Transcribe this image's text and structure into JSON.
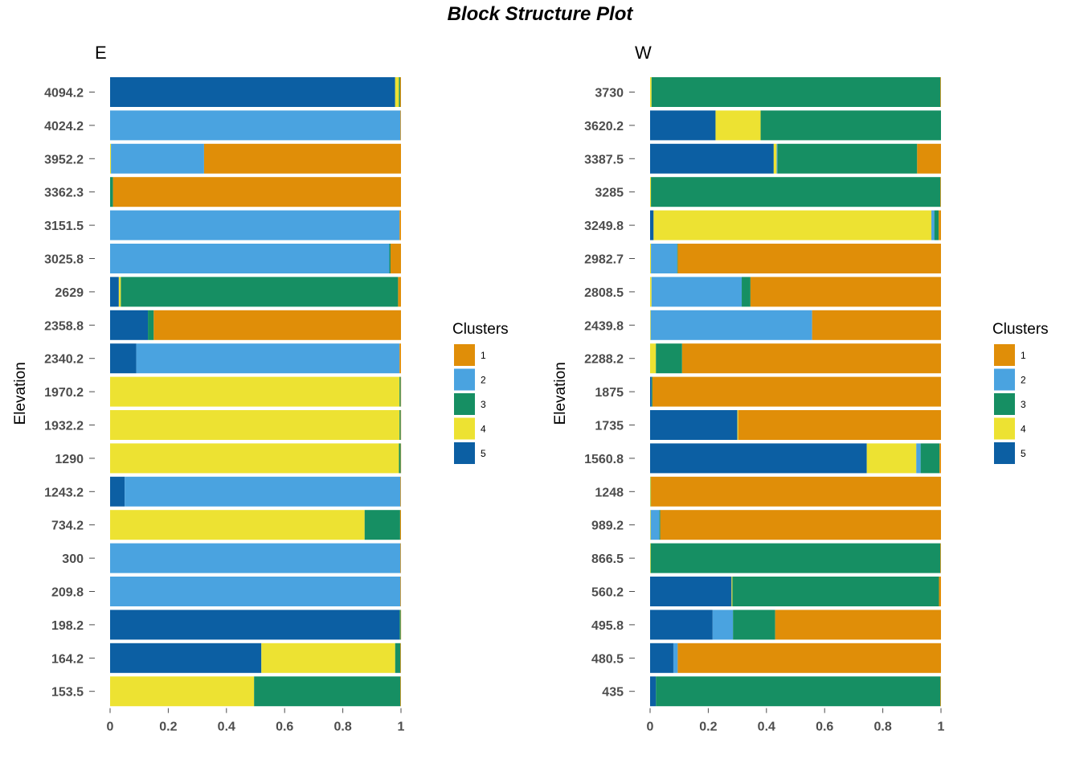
{
  "title": "Block Structure Plot",
  "colors": {
    "1": "#E08E08",
    "2": "#4AA3E0",
    "3": "#168F63",
    "4": "#EDE232",
    "5": "#0C5FA3"
  },
  "chart_data": [
    {
      "type": "bar",
      "orientation": "horizontal",
      "stacked": true,
      "title": "E",
      "ylabel": "Elevation",
      "xlim": [
        0,
        1
      ],
      "xticks": [
        "0",
        "0.2",
        "0.4",
        "0.6",
        "0.8",
        "1"
      ],
      "legend": {
        "title": "Clusters",
        "entries": [
          "1",
          "2",
          "3",
          "4",
          "5"
        ],
        "position": "right"
      },
      "stack_order": [
        "5",
        "4",
        "2",
        "3",
        "1"
      ],
      "categories": [
        "4094.2",
        "4024.2",
        "3952.2",
        "3362.3",
        "3151.5",
        "3025.8",
        "2629",
        "2358.8",
        "2340.2",
        "1970.2",
        "1932.2",
        "1290",
        "1243.2",
        "734.2",
        "300",
        "209.8",
        "198.2",
        "164.2",
        "153.5"
      ],
      "series": [
        {
          "name": "5",
          "values": [
            0.98,
            0,
            0,
            0,
            0,
            0,
            0.03,
            0.13,
            0.09,
            0,
            0,
            0,
            0.05,
            0,
            0,
            0,
            0.995,
            0.52,
            0
          ]
        },
        {
          "name": "4",
          "values": [
            0.013,
            0,
            0.003,
            0,
            0,
            0,
            0.007,
            0,
            0,
            0.995,
            0.995,
            0.993,
            0,
            0.875,
            0,
            0,
            0,
            0.46,
            0.495
          ]
        },
        {
          "name": "2",
          "values": [
            0,
            0.998,
            0.32,
            0,
            0.995,
            0.96,
            0,
            0,
            0.905,
            0,
            0,
            0,
            0.948,
            0,
            0.998,
            0.998,
            0,
            0,
            0
          ]
        },
        {
          "name": "3",
          "values": [
            0.004,
            0,
            0,
            0.01,
            0,
            0.004,
            0.953,
            0.02,
            0,
            0.004,
            0.004,
            0.006,
            0,
            0.122,
            0,
            0,
            0.004,
            0.018,
            0.503
          ]
        },
        {
          "name": "1",
          "values": [
            0.003,
            0.002,
            0.677,
            0.99,
            0.005,
            0.036,
            0.01,
            0.85,
            0.005,
            0.001,
            0.001,
            0.001,
            0.002,
            0.003,
            0.002,
            0.002,
            0.001,
            0.002,
            0.002
          ]
        }
      ]
    },
    {
      "type": "bar",
      "orientation": "horizontal",
      "stacked": true,
      "title": "W",
      "ylabel": "Elevation",
      "xlim": [
        0,
        1
      ],
      "xticks": [
        "0",
        "0.2",
        "0.4",
        "0.6",
        "0.8",
        "1"
      ],
      "legend": {
        "title": "Clusters",
        "entries": [
          "1",
          "2",
          "3",
          "4",
          "5"
        ],
        "position": "right"
      },
      "stack_order": [
        "5",
        "4",
        "2",
        "3",
        "1"
      ],
      "categories": [
        "3730",
        "3620.2",
        "3387.5",
        "3285",
        "3249.8",
        "2982.7",
        "2808.5",
        "2439.8",
        "2288.2",
        "1875",
        "1735",
        "1560.8",
        "1248",
        "989.2",
        "866.5",
        "560.2",
        "495.8",
        "480.5",
        "435"
      ],
      "series": [
        {
          "name": "5",
          "values": [
            0,
            0.225,
            0.425,
            0,
            0.012,
            0,
            0,
            0,
            0,
            0.005,
            0.3,
            0.745,
            0,
            0,
            0,
            0.28,
            0.215,
            0.08,
            0.02
          ]
        },
        {
          "name": "4",
          "values": [
            0.005,
            0.155,
            0.01,
            0.003,
            0.955,
            0.003,
            0.005,
            0.002,
            0.02,
            0,
            0.003,
            0.17,
            0.002,
            0.002,
            0.002,
            0.003,
            0,
            0,
            0
          ]
        },
        {
          "name": "2",
          "values": [
            0,
            0,
            0.003,
            0,
            0.01,
            0.09,
            0.31,
            0.555,
            0,
            0,
            0,
            0.015,
            0,
            0.03,
            0,
            0,
            0.07,
            0.015,
            0
          ]
        },
        {
          "name": "3",
          "values": [
            0.993,
            0.62,
            0.48,
            0.995,
            0.015,
            0.002,
            0.03,
            0,
            0.09,
            0.003,
            0,
            0.065,
            0.001,
            0.003,
            0.996,
            0.71,
            0.145,
            0,
            0.978
          ]
        },
        {
          "name": "1",
          "values": [
            0.002,
            0,
            0.082,
            0.002,
            0.008,
            0.905,
            0.655,
            0.443,
            0.89,
            0.992,
            0.697,
            0.005,
            0.997,
            0.965,
            0.002,
            0.007,
            0.57,
            0.905,
            0.002
          ]
        }
      ]
    }
  ]
}
